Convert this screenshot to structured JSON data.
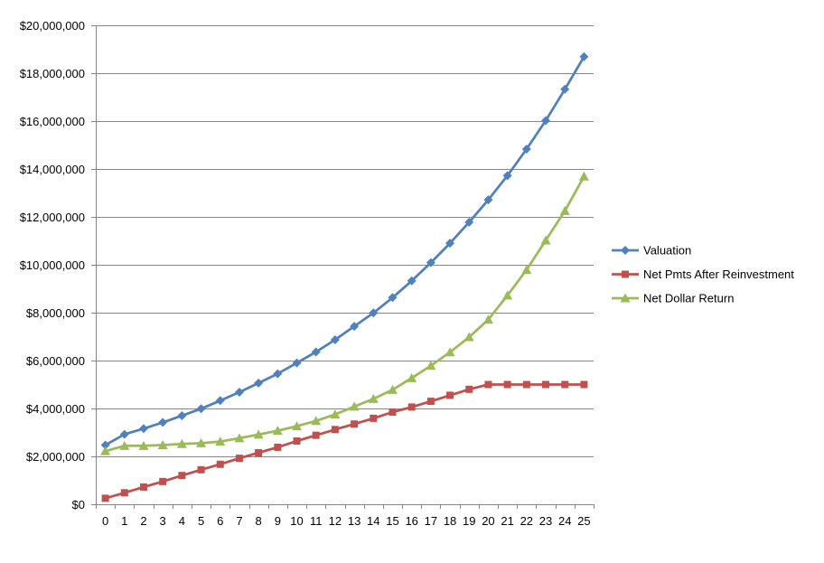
{
  "chart_data": {
    "type": "line",
    "title": "",
    "xlabel": "",
    "ylabel": "",
    "x": [
      0,
      1,
      2,
      3,
      4,
      5,
      6,
      7,
      8,
      9,
      10,
      11,
      12,
      13,
      14,
      15,
      16,
      17,
      18,
      19,
      20,
      21,
      22,
      23,
      24,
      25
    ],
    "ylim": [
      0,
      20000000
    ],
    "yticks": [
      0,
      2000000,
      4000000,
      6000000,
      8000000,
      10000000,
      12000000,
      14000000,
      16000000,
      18000000,
      20000000
    ],
    "ytick_labels": [
      "$0",
      "$2,000,000",
      "$4,000,000",
      "$6,000,000",
      "$8,000,000",
      "$10,000,000",
      "$12,000,000",
      "$14,000,000",
      "$16,000,000",
      "$18,000,000",
      "$20,000,000"
    ],
    "grid": "horizontal",
    "legend_position": "right",
    "series": [
      {
        "name": "Valuation",
        "color": "#4f81bd",
        "marker": "diamond",
        "values": [
          2470000,
          2920000,
          3160000,
          3420000,
          3700000,
          3990000,
          4330000,
          4680000,
          5060000,
          5450000,
          5900000,
          6360000,
          6870000,
          7430000,
          7990000,
          8630000,
          9330000,
          10090000,
          10900000,
          11780000,
          12710000,
          13720000,
          14830000,
          16020000,
          17330000,
          18690000
        ]
      },
      {
        "name": "Net Pmts After Reinvestment",
        "color": "#c0504d",
        "marker": "square",
        "values": [
          250000,
          480000,
          720000,
          950000,
          1200000,
          1440000,
          1670000,
          1920000,
          2150000,
          2380000,
          2640000,
          2880000,
          3120000,
          3350000,
          3590000,
          3850000,
          4060000,
          4300000,
          4550000,
          4800000,
          5000000,
          5000000,
          5000000,
          5000000,
          5000000,
          5000000
        ]
      },
      {
        "name": "Net Dollar Return",
        "color": "#9bbb59",
        "marker": "triangle",
        "values": [
          2220000,
          2440000,
          2440000,
          2470000,
          2520000,
          2550000,
          2620000,
          2760000,
          2910000,
          3070000,
          3260000,
          3480000,
          3750000,
          4080000,
          4400000,
          4780000,
          5270000,
          5790000,
          6350000,
          6980000,
          7710000,
          8720000,
          9790000,
          11020000,
          12250000,
          13690000
        ]
      }
    ]
  }
}
